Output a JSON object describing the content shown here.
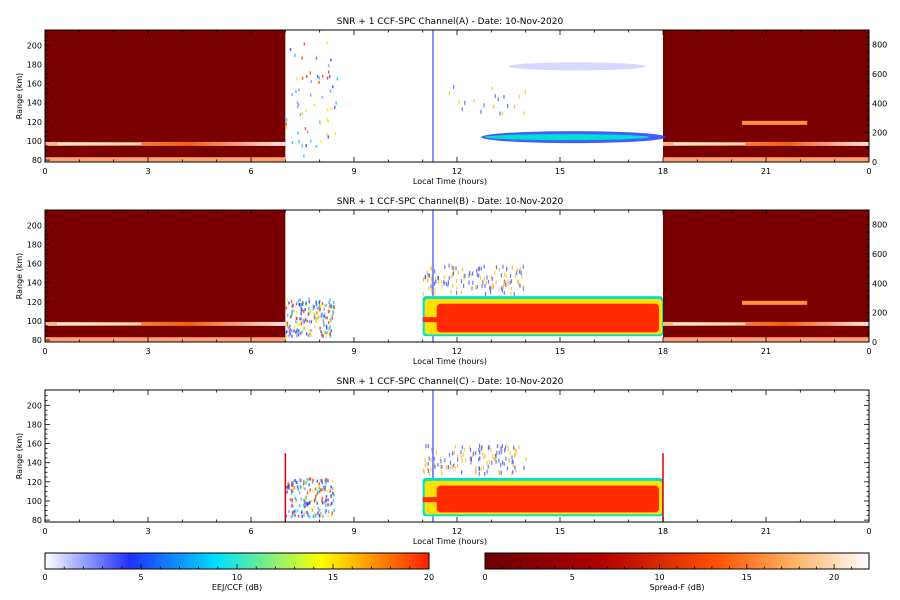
{
  "colors": {
    "cbar_left": [
      "#ffffff",
      "#2030ff",
      "#00e0ff",
      "#ffff00",
      "#ff2000"
    ],
    "cbar_right": [
      "#6a0000",
      "#b00000",
      "#ff5000",
      "#ffb060",
      "#ffffff"
    ],
    "sf_background": "#7a0000",
    "ccf_core": "#ff2a00",
    "ccf_edge": "#00e0d0"
  },
  "chart_data": [
    {
      "type": "heatmap",
      "title": "SNR + 1 CCF-SPC Channel(A) - Date: 10-Nov-2020",
      "xlabel": "Local Time (hours)",
      "ylabel": "Range (km)",
      "x_tick_labels": [
        "0",
        "3",
        "6",
        "9",
        "12",
        "15",
        "18",
        "21",
        "0"
      ],
      "y_tick_labels": [
        "80",
        "100",
        "120",
        "140",
        "160",
        "180",
        "200"
      ],
      "y2_tick_labels": [
        "0",
        "200",
        "400",
        "600",
        "800"
      ],
      "xlim": [
        0,
        24
      ],
      "ylim": [
        78,
        216
      ],
      "y2lim": [
        0,
        900
      ],
      "spread_f_intervals": [
        [
          0,
          7
        ],
        [
          18,
          24
        ]
      ],
      "eej_ccf_interval": [
        7,
        18
      ]
    },
    {
      "type": "heatmap",
      "title": "SNR + 1 CCF-SPC Channel(B) - Date: 10-Nov-2020",
      "xlabel": "Local Time (hours)",
      "ylabel": "Range (km)",
      "x_tick_labels": [
        "0",
        "3",
        "6",
        "9",
        "12",
        "15",
        "18",
        "21",
        "0"
      ],
      "y_tick_labels": [
        "80",
        "100",
        "120",
        "140",
        "160",
        "180",
        "200"
      ],
      "y2_tick_labels": [
        "0",
        "200",
        "400",
        "600",
        "800"
      ],
      "xlim": [
        0,
        24
      ],
      "ylim": [
        78,
        216
      ],
      "y2lim": [
        0,
        900
      ],
      "spread_f_intervals": [
        [
          0,
          7
        ],
        [
          18,
          24
        ]
      ],
      "eej_ccf_interval": [
        7,
        18
      ]
    },
    {
      "type": "heatmap",
      "title": "SNR + 1 CCF-SPC Channel(C) - Date: 10-Nov-2020",
      "xlabel": "Local Time (hours)",
      "ylabel": "Range (km)",
      "x_tick_labels": [
        "0",
        "3",
        "6",
        "9",
        "12",
        "15",
        "18",
        "21",
        "0"
      ],
      "y_tick_labels": [
        "80",
        "100",
        "120",
        "140",
        "160",
        "180",
        "200"
      ],
      "xlim": [
        0,
        24
      ],
      "ylim": [
        78,
        216
      ],
      "eej_ccf_interval": [
        7,
        18
      ]
    }
  ],
  "colorbars": [
    {
      "label": "EEJ/CCF (dB)",
      "tick_labels": [
        "0",
        "5",
        "10",
        "15",
        "20"
      ],
      "range": [
        0,
        20
      ]
    },
    {
      "label": "Spread-F (dB)",
      "tick_labels": [
        "0",
        "5",
        "10",
        "15",
        "20"
      ],
      "range": [
        0,
        22
      ]
    }
  ]
}
